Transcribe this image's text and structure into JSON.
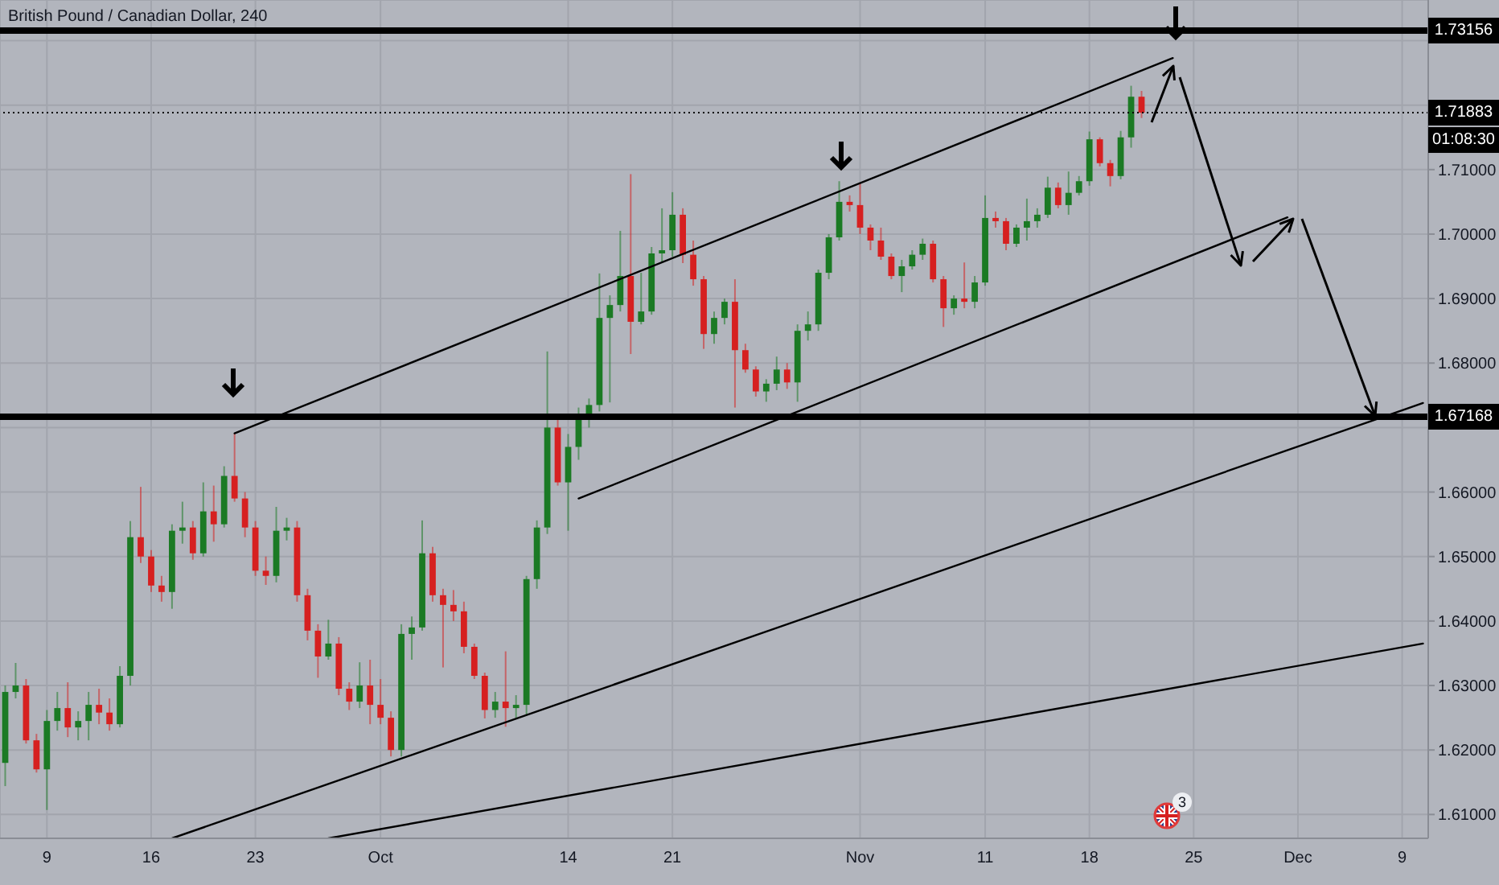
{
  "chart_data": {
    "type": "candlestick",
    "title": "British Pound / Canadian Dollar, 240",
    "categories": [
      null,
      null,
      null,
      null,
      "9",
      null,
      null,
      null,
      null,
      null,
      null,
      null,
      null,
      null,
      "16",
      null,
      null,
      null,
      null,
      null,
      null,
      null,
      null,
      null,
      "23",
      null,
      null,
      null,
      null,
      null,
      null,
      null,
      null,
      null,
      null,
      null,
      "Oct",
      null,
      null,
      null,
      null,
      null,
      null,
      null,
      null,
      null,
      null,
      null,
      null,
      null,
      null,
      null,
      null,
      null,
      "14",
      null,
      null,
      null,
      null,
      null,
      null,
      null,
      null,
      null,
      "21",
      null,
      null,
      null,
      null,
      null,
      null,
      null,
      null,
      null,
      null,
      null,
      null,
      null,
      null,
      null,
      null,
      null,
      "Nov",
      null,
      null,
      null,
      null,
      null,
      null,
      null,
      null,
      null,
      null,
      null,
      "11",
      null,
      null,
      null,
      null,
      null,
      null,
      null,
      null,
      null,
      "18",
      null,
      null,
      null,
      null,
      null,
      null,
      null,
      null,
      null,
      "25",
      null,
      null,
      null,
      null,
      null,
      null,
      null,
      null,
      null,
      "Dec",
      null,
      null,
      null,
      null,
      null,
      null,
      null,
      null,
      null,
      "9",
      null,
      null
    ],
    "ohlc": [
      [
        1.618,
        1.63,
        1.6144,
        1.629
      ],
      [
        1.629,
        1.6335,
        1.628,
        1.63
      ],
      [
        1.63,
        1.631,
        1.621,
        1.6215
      ],
      [
        1.6215,
        1.6225,
        1.6165,
        1.617
      ],
      [
        1.617,
        1.6262,
        1.6107,
        1.6245
      ],
      [
        1.6245,
        1.629,
        1.623,
        1.6265
      ],
      [
        1.6265,
        1.6305,
        1.622,
        1.6235
      ],
      [
        1.6235,
        1.626,
        1.6215,
        1.6245
      ],
      [
        1.6245,
        1.629,
        1.6215,
        1.627
      ],
      [
        1.627,
        1.6295,
        1.624,
        1.6258
      ],
      [
        1.6258,
        1.628,
        1.623,
        1.624
      ],
      [
        1.624,
        1.633,
        1.6235,
        1.6315
      ],
      [
        1.6315,
        1.6555,
        1.63,
        1.653
      ],
      [
        1.653,
        1.6608,
        1.649,
        1.65
      ],
      [
        1.65,
        1.651,
        1.6445,
        1.6455
      ],
      [
        1.6455,
        1.647,
        1.643,
        1.6445
      ],
      [
        1.6445,
        1.655,
        1.6419,
        1.654
      ],
      [
        1.654,
        1.6585,
        1.652,
        1.6545
      ],
      [
        1.6545,
        1.6555,
        1.6495,
        1.6505
      ],
      [
        1.6505,
        1.6615,
        1.65,
        1.657
      ],
      [
        1.657,
        1.661,
        1.6523,
        1.655
      ],
      [
        1.655,
        1.664,
        1.6545,
        1.6625
      ],
      [
        1.6625,
        1.6691,
        1.6585,
        1.659
      ],
      [
        1.659,
        1.66,
        1.653,
        1.6545
      ],
      [
        1.6545,
        1.6555,
        1.647,
        1.6478
      ],
      [
        1.6478,
        1.65,
        1.6456,
        1.647
      ],
      [
        1.647,
        1.6577,
        1.646,
        1.654
      ],
      [
        1.654,
        1.656,
        1.6525,
        1.6545
      ],
      [
        1.6545,
        1.6555,
        1.643,
        1.644
      ],
      [
        1.644,
        1.645,
        1.637,
        1.6385
      ],
      [
        1.6385,
        1.6395,
        1.6312,
        1.6345
      ],
      [
        1.6345,
        1.6402,
        1.634,
        1.6365
      ],
      [
        1.6365,
        1.6375,
        1.6285,
        1.6295
      ],
      [
        1.6295,
        1.6305,
        1.6262,
        1.6275
      ],
      [
        1.6275,
        1.6336,
        1.6265,
        1.63
      ],
      [
        1.63,
        1.634,
        1.624,
        1.627
      ],
      [
        1.627,
        1.631,
        1.624,
        1.625
      ],
      [
        1.625,
        1.626,
        1.619,
        1.62
      ],
      [
        1.62,
        1.6395,
        1.619,
        1.638
      ],
      [
        1.638,
        1.6407,
        1.634,
        1.639
      ],
      [
        1.639,
        1.6556,
        1.6385,
        1.6505
      ],
      [
        1.6505,
        1.6515,
        1.643,
        1.644
      ],
      [
        1.644,
        1.645,
        1.6328,
        1.6425
      ],
      [
        1.6425,
        1.6448,
        1.64,
        1.6415
      ],
      [
        1.6415,
        1.643,
        1.635,
        1.636
      ],
      [
        1.636,
        1.6365,
        1.631,
        1.6315
      ],
      [
        1.6315,
        1.632,
        1.6249,
        1.6262
      ],
      [
        1.6262,
        1.629,
        1.625,
        1.6275
      ],
      [
        1.6275,
        1.6353,
        1.6236,
        1.6265
      ],
      [
        1.6265,
        1.6285,
        1.625,
        1.627
      ],
      [
        1.627,
        1.647,
        1.6255,
        1.6465
      ],
      [
        1.6465,
        1.6556,
        1.645,
        1.6545
      ],
      [
        1.6545,
        1.6818,
        1.6535,
        1.67
      ],
      [
        1.67,
        1.672,
        1.661,
        1.6615
      ],
      [
        1.6615,
        1.669,
        1.654,
        1.667
      ],
      [
        1.667,
        1.6731,
        1.665,
        1.6714
      ],
      [
        1.6714,
        1.6745,
        1.67,
        1.6735
      ],
      [
        1.6735,
        1.6939,
        1.6725,
        1.687
      ],
      [
        1.687,
        1.6905,
        1.6739,
        1.689
      ],
      [
        1.689,
        1.7005,
        1.688,
        1.6935
      ],
      [
        1.6935,
        1.7093,
        1.6814,
        1.6864
      ],
      [
        1.6864,
        1.694,
        1.686,
        1.688
      ],
      [
        1.688,
        1.698,
        1.6875,
        1.697
      ],
      [
        1.697,
        1.704,
        1.6955,
        1.6975
      ],
      [
        1.6975,
        1.7065,
        1.6965,
        1.703
      ],
      [
        1.703,
        1.704,
        1.6955,
        1.6968
      ],
      [
        1.6968,
        1.699,
        1.692,
        1.693
      ],
      [
        1.693,
        1.6935,
        1.6822,
        1.6845
      ],
      [
        1.6845,
        1.688,
        1.683,
        1.687
      ],
      [
        1.687,
        1.69,
        1.686,
        1.6895
      ],
      [
        1.6895,
        1.693,
        1.6731,
        1.682
      ],
      [
        1.682,
        1.683,
        1.6785,
        1.679
      ],
      [
        1.679,
        1.6795,
        1.6748,
        1.6756
      ],
      [
        1.6756,
        1.6775,
        1.674,
        1.6768
      ],
      [
        1.6768,
        1.681,
        1.6758,
        1.679
      ],
      [
        1.679,
        1.68,
        1.676,
        1.677
      ],
      [
        1.677,
        1.686,
        1.674,
        1.685
      ],
      [
        1.685,
        1.688,
        1.6835,
        1.686
      ],
      [
        1.686,
        1.6945,
        1.685,
        1.694
      ],
      [
        1.694,
        1.7,
        1.693,
        1.6995
      ],
      [
        1.6995,
        1.7082,
        1.699,
        1.705
      ],
      [
        1.705,
        1.706,
        1.7035,
        1.7045
      ],
      [
        1.7045,
        1.708,
        1.7,
        1.701
      ],
      [
        1.701,
        1.7015,
        1.6975,
        1.699
      ],
      [
        1.699,
        1.701,
        1.696,
        1.6965
      ],
      [
        1.6965,
        1.697,
        1.693,
        1.6935
      ],
      [
        1.6935,
        1.696,
        1.691,
        1.695
      ],
      [
        1.695,
        1.6975,
        1.6945,
        1.6968
      ],
      [
        1.6968,
        1.6993,
        1.696,
        1.6985
      ],
      [
        1.6985,
        1.699,
        1.6925,
        1.693
      ],
      [
        1.693,
        1.6935,
        1.6856,
        1.6885
      ],
      [
        1.6885,
        1.6905,
        1.6875,
        1.69
      ],
      [
        1.69,
        1.6956,
        1.6885,
        1.6895
      ],
      [
        1.6895,
        1.6935,
        1.6885,
        1.6925
      ],
      [
        1.6925,
        1.706,
        1.692,
        1.7025
      ],
      [
        1.7025,
        1.7035,
        1.701,
        1.702
      ],
      [
        1.702,
        1.7025,
        1.6975,
        1.6985
      ],
      [
        1.6985,
        1.7015,
        1.698,
        1.701
      ],
      [
        1.701,
        1.7055,
        1.699,
        1.702
      ],
      [
        1.702,
        1.704,
        1.701,
        1.703
      ],
      [
        1.703,
        1.7089,
        1.7025,
        1.7072
      ],
      [
        1.7072,
        1.708,
        1.704,
        1.7045
      ],
      [
        1.7045,
        1.7097,
        1.703,
        1.7064
      ],
      [
        1.7064,
        1.709,
        1.706,
        1.7082
      ],
      [
        1.7082,
        1.7159,
        1.7075,
        1.7147
      ],
      [
        1.7147,
        1.715,
        1.7105,
        1.711
      ],
      [
        1.711,
        1.7115,
        1.7074,
        1.709
      ],
      [
        1.709,
        1.716,
        1.7085,
        1.715
      ],
      [
        1.715,
        1.723,
        1.7134,
        1.7213
      ],
      [
        1.7213,
        1.7222,
        1.718,
        1.71883
      ],
      null,
      null,
      null,
      null,
      null,
      null,
      null,
      null,
      null,
      null,
      null,
      null,
      null,
      null,
      null,
      null,
      null,
      null,
      null,
      null,
      null,
      null,
      null,
      null,
      null,
      null,
      null
    ],
    "colors": [
      "#1b7a24",
      "#1b7a24",
      "#d62020",
      "#d62020",
      "#1b7a24",
      "#1b7a24",
      "#d62020",
      "#1b7a24",
      "#1b7a24",
      "#d62020",
      "#d62020",
      "#1b7a24",
      "#1b7a24",
      "#d62020",
      "#d62020",
      "#d62020",
      "#1b7a24",
      "#1b7a24",
      "#d62020",
      "#1b7a24",
      "#d62020",
      "#1b7a24",
      "#d62020",
      "#d62020",
      "#d62020",
      "#d62020",
      "#1b7a24",
      "#1b7a24",
      "#d62020",
      "#d62020",
      "#d62020",
      "#1b7a24",
      "#d62020",
      "#d62020",
      "#1b7a24",
      "#d62020",
      "#d62020",
      "#d62020",
      "#1b7a24",
      "#1b7a24",
      "#1b7a24",
      "#d62020",
      "#d62020",
      "#d62020",
      "#d62020",
      "#d62020",
      "#d62020",
      "#1b7a24",
      "#d62020",
      "#1b7a24",
      "#1b7a24",
      "#1b7a24",
      "#1b7a24",
      "#d62020",
      "#1b7a24",
      "#1b7a24",
      "#1b7a24",
      "#1b7a24",
      "#1b7a24",
      "#1b7a24",
      "#d62020",
      "#1b7a24",
      "#1b7a24",
      "#1b7a24",
      "#1b7a24",
      "#d62020",
      "#d62020",
      "#d62020",
      "#1b7a24",
      "#1b7a24",
      "#d62020",
      "#d62020",
      "#d62020",
      "#1b7a24",
      "#1b7a24",
      "#d62020",
      "#1b7a24",
      "#1b7a24",
      "#1b7a24",
      "#1b7a24",
      "#1b7a24",
      "#d62020",
      "#d62020",
      "#d62020",
      "#d62020",
      "#d62020",
      "#1b7a24",
      "#1b7a24",
      "#1b7a24",
      "#d62020",
      "#d62020",
      "#1b7a24",
      "#d62020",
      "#1b7a24",
      "#1b7a24",
      "#d62020",
      "#d62020",
      "#1b7a24",
      "#1b7a24",
      "#1b7a24",
      "#1b7a24",
      "#d62020",
      "#1b7a24",
      "#1b7a24",
      "#1b7a24",
      "#d62020",
      "#d62020",
      "#1b7a24",
      "#1b7a24",
      "#d62020",
      null,
      null,
      null,
      null,
      null,
      null,
      null,
      null,
      null,
      null,
      null,
      null,
      null,
      null,
      null,
      null,
      null,
      null,
      null,
      null,
      null,
      null,
      null,
      null,
      null,
      null,
      null
    ],
    "series": [
      {
        "type": "line",
        "color": "#000000",
        "values": [
          null,
          null,
          null,
          null,
          null,
          null,
          null,
          null,
          null,
          null,
          null,
          null,
          null,
          null,
          null,
          null,
          null,
          null,
          null,
          null,
          null,
          null,
          1.6691,
          null,
          null,
          null,
          null,
          null,
          null,
          null,
          null,
          null,
          null,
          null,
          null,
          null,
          null,
          null,
          null,
          null,
          null,
          null,
          null,
          null,
          null,
          null,
          null,
          null,
          null,
          null,
          null,
          null,
          null,
          null,
          null,
          null,
          null,
          null,
          null,
          null,
          null,
          null,
          null,
          null,
          null,
          null,
          null,
          null,
          null,
          null,
          null,
          null,
          null,
          null,
          null,
          null,
          null,
          null,
          null,
          null,
          null,
          null,
          null,
          null,
          null,
          null,
          null,
          null,
          null,
          null,
          null,
          null,
          null,
          null,
          null,
          null,
          null,
          null,
          null,
          null,
          null,
          null,
          null,
          null,
          null,
          null,
          null,
          null,
          null,
          null,
          null,
          null,
          1.7273,
          null,
          null,
          null,
          null,
          null,
          null,
          null,
          null,
          null,
          null,
          null,
          null,
          null,
          null,
          null,
          null,
          null,
          null,
          null,
          null,
          null,
          null,
          null,
          null
        ]
      },
      {
        "type": "line",
        "color": "#000000",
        "values": [
          null,
          null,
          null,
          null,
          null,
          null,
          null,
          null,
          null,
          null,
          null,
          null,
          null,
          null,
          null,
          null,
          null,
          null,
          null,
          null,
          null,
          null,
          null,
          null,
          null,
          null,
          null,
          null,
          null,
          null,
          null,
          null,
          null,
          null,
          null,
          null,
          null,
          null,
          null,
          null,
          null,
          null,
          null,
          null,
          null,
          null,
          null,
          null,
          null,
          null,
          null,
          null,
          null,
          null,
          null,
          1.659,
          null,
          null,
          null,
          null,
          null,
          null,
          null,
          null,
          null,
          null,
          null,
          null,
          null,
          null,
          null,
          null,
          null,
          null,
          null,
          null,
          null,
          null,
          null,
          null,
          null,
          null,
          null,
          null,
          null,
          null,
          null,
          null,
          null,
          null,
          null,
          null,
          null,
          null,
          null,
          null,
          null,
          null,
          null,
          null,
          null,
          null,
          null,
          null,
          null,
          null,
          null,
          null,
          null,
          null,
          null,
          null,
          null,
          null,
          null,
          null,
          null,
          null,
          null,
          null,
          null,
          null,
          null,
          1.7026,
          null,
          null,
          null,
          null,
          null,
          null,
          null,
          null,
          null,
          null,
          null,
          null,
          null
        ]
      },
      {
        "type": "line",
        "color": "#000000",
        "values": [
          null,
          null,
          null,
          null,
          null,
          null,
          null,
          null,
          null,
          null,
          null,
          null,
          null,
          null,
          null,
          null,
          1.6063,
          null,
          null,
          null,
          null,
          null,
          null,
          null,
          null,
          null,
          null,
          null,
          null,
          null,
          null,
          null,
          null,
          null,
          null,
          null,
          null,
          null,
          null,
          null,
          null,
          null,
          null,
          null,
          null,
          null,
          null,
          null,
          null,
          null,
          null,
          null,
          null,
          null,
          null,
          null,
          null,
          null,
          null,
          null,
          null,
          null,
          null,
          null,
          null,
          null,
          null,
          null,
          null,
          null,
          null,
          null,
          null,
          null,
          null,
          null,
          null,
          null,
          null,
          null,
          null,
          null,
          null,
          null,
          null,
          null,
          null,
          null,
          null,
          null,
          null,
          null,
          null,
          null,
          null,
          null,
          null,
          null,
          null,
          null,
          null,
          null,
          null,
          null,
          null,
          null,
          null,
          null,
          null,
          null,
          null,
          null,
          null,
          null,
          null,
          null,
          null,
          null,
          null,
          null,
          null,
          null,
          null,
          null,
          null,
          null,
          null,
          null,
          null,
          null,
          null,
          null,
          null,
          null,
          null,
          null,
          1.6738
        ]
      },
      {
        "type": "line",
        "color": "#000000",
        "values": [
          null,
          null,
          null,
          null,
          null,
          null,
          null,
          null,
          null,
          null,
          null,
          null,
          null,
          null,
          null,
          null,
          null,
          null,
          null,
          null,
          null,
          null,
          null,
          null,
          null,
          null,
          null,
          null,
          null,
          null,
          null,
          1.6063,
          null,
          null,
          null,
          null,
          null,
          null,
          null,
          null,
          null,
          null,
          null,
          null,
          null,
          null,
          null,
          null,
          null,
          null,
          null,
          null,
          null,
          null,
          null,
          null,
          null,
          null,
          null,
          null,
          null,
          null,
          null,
          null,
          null,
          null,
          null,
          null,
          null,
          null,
          null,
          null,
          null,
          null,
          null,
          null,
          null,
          null,
          null,
          null,
          null,
          null,
          null,
          null,
          null,
          null,
          null,
          null,
          null,
          null,
          null,
          null,
          null,
          null,
          null,
          null,
          null,
          null,
          null,
          null,
          null,
          null,
          null,
          null,
          null,
          null,
          null,
          null,
          null,
          null,
          null,
          null,
          null,
          null,
          null,
          null,
          null,
          null,
          null,
          null,
          null,
          null,
          null,
          null,
          null,
          null,
          null,
          null,
          null,
          null,
          null,
          null,
          null,
          null,
          null,
          null,
          1.6365
        ]
      }
    ],
    "ylim": [
      1.6063,
      1.7363
    ],
    "yticks": [
      {
        "value": 1.61,
        "label": "1.61000"
      },
      {
        "value": 1.62,
        "label": "1.62000"
      },
      {
        "value": 1.63,
        "label": "1.63000"
      },
      {
        "value": 1.64,
        "label": "1.64000"
      },
      {
        "value": 1.65,
        "label": "1.65000"
      },
      {
        "value": 1.66,
        "label": "1.66000"
      },
      {
        "value": 1.67,
        "label": null
      },
      {
        "value": 1.68,
        "label": "1.68000"
      },
      {
        "value": 1.69,
        "label": "1.69000"
      },
      {
        "value": 1.7,
        "label": "1.70000"
      },
      {
        "value": 1.71,
        "label": "1.71000"
      },
      {
        "value": 1.72,
        "label": null
      },
      {
        "value": 1.73,
        "label": null
      }
    ],
    "grid": true,
    "ref_lines": [
      {
        "axis": "y",
        "value": 1.73156,
        "label": "1.73156",
        "color": "#000000"
      },
      {
        "axis": "y",
        "value": 1.71883,
        "label": "1.71883",
        "color": "#000000",
        "line_style": "dotted"
      },
      {
        "axis": "y",
        "value": 1.67168,
        "label": "1.67168",
        "color": "#000000"
      }
    ],
    "annotations": [
      "01:08:30",
      "3"
    ]
  }
}
